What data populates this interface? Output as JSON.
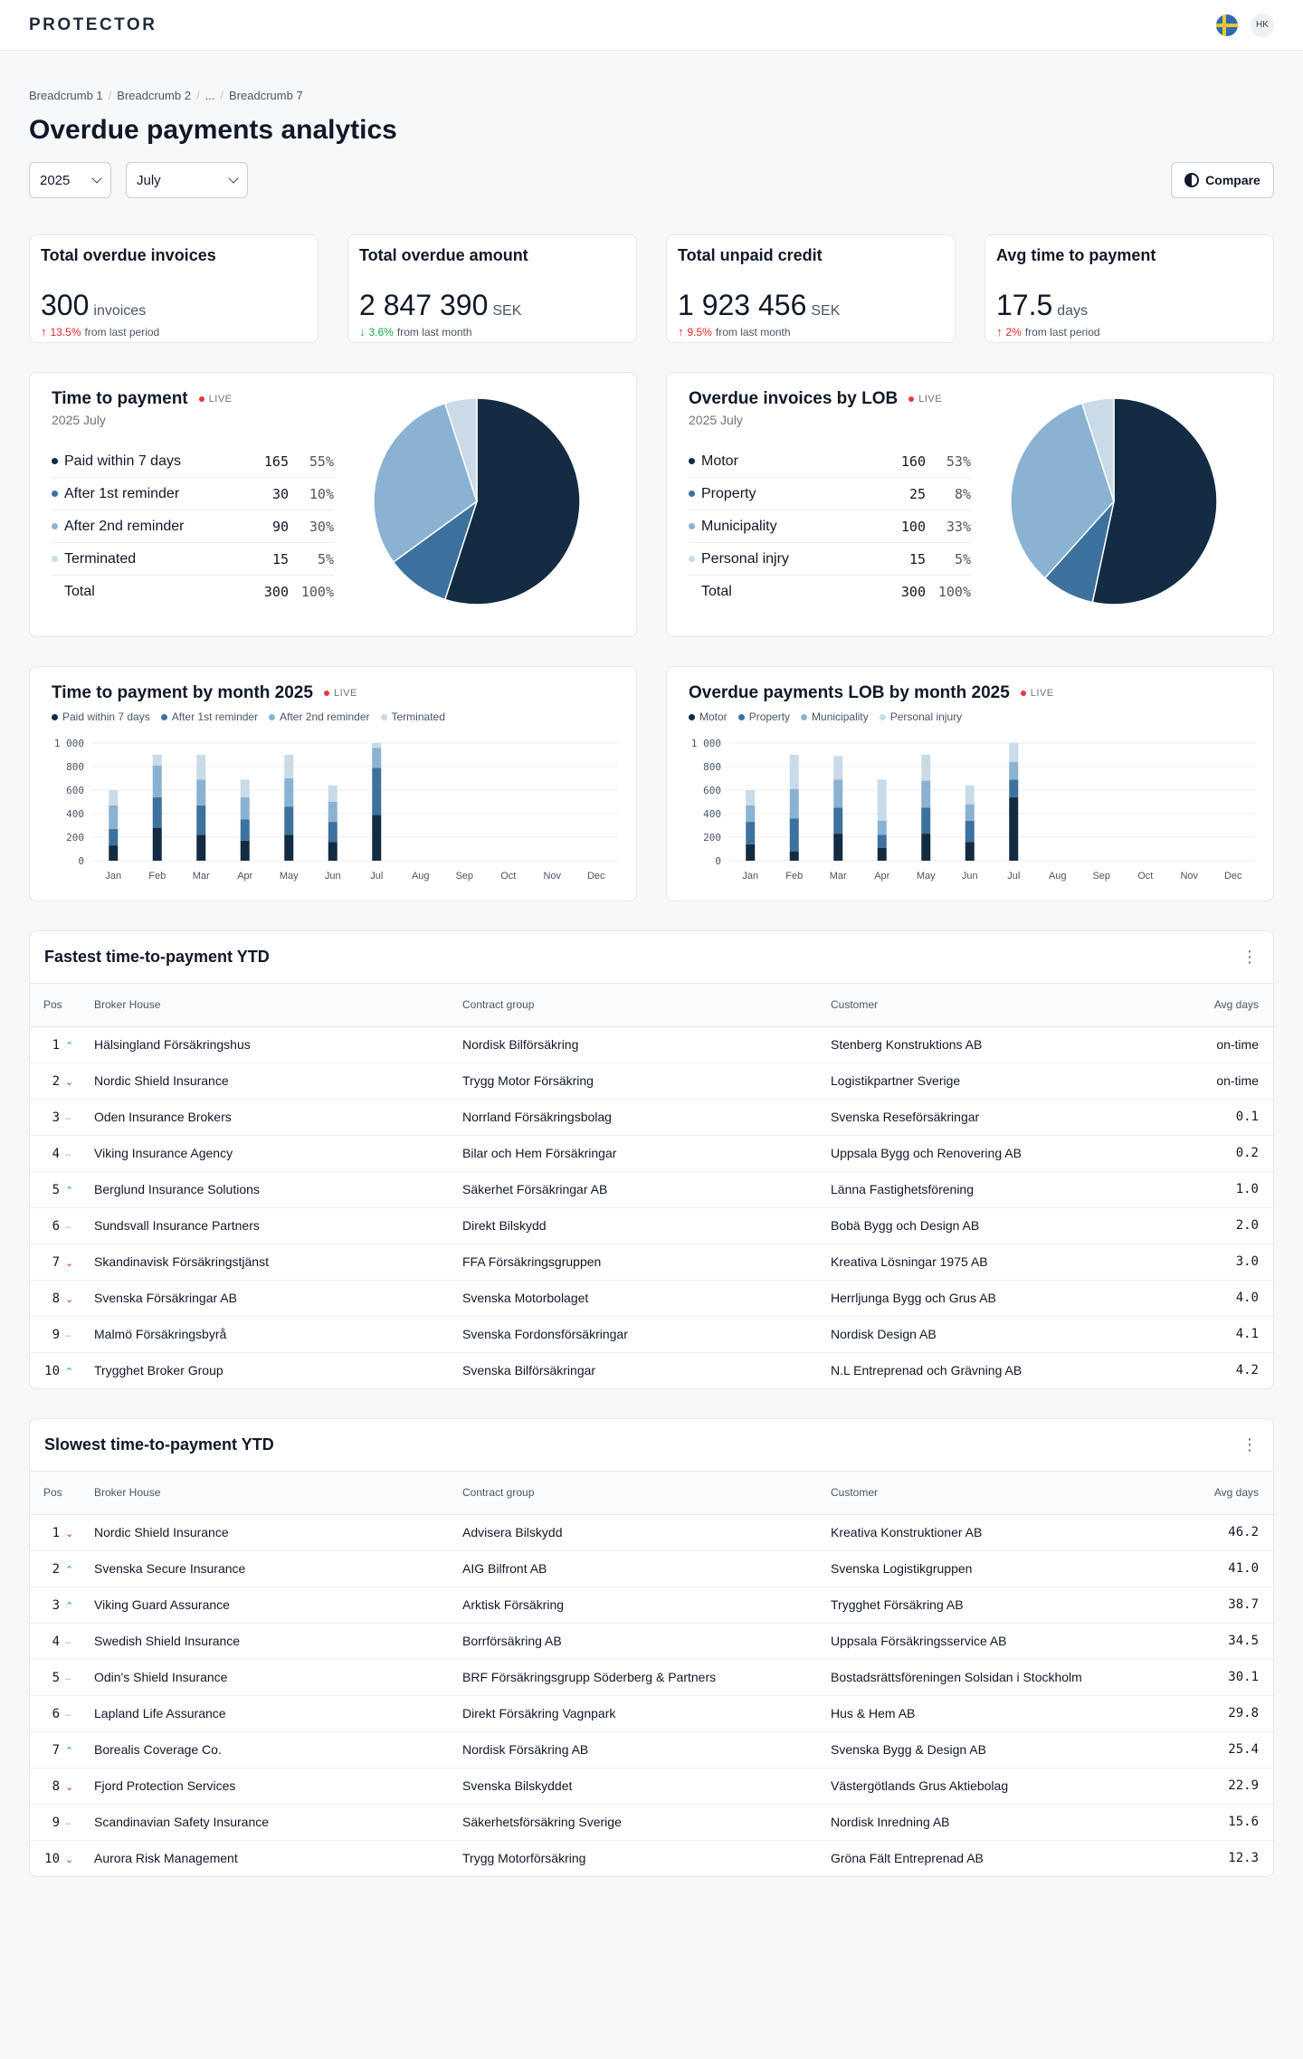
{
  "app": {
    "logo": "PROTECTOR",
    "user_initials": "HK"
  },
  "breadcrumb": [
    "Breadcrumb 1",
    "Breadcrumb 2",
    "...",
    "Breadcrumb 7"
  ],
  "page": {
    "title": "Overdue payments analytics"
  },
  "filters": {
    "year": "2025",
    "month": "July",
    "compare_label": "Compare"
  },
  "kpis": [
    {
      "title": "Total overdue invoices",
      "value": "300",
      "unit": "invoices",
      "delta": "13.5%",
      "direction": "up",
      "note": "from last period"
    },
    {
      "title": "Total overdue amount",
      "value": "2 847 390",
      "unit": "SEK",
      "delta": "3.6%",
      "direction": "down",
      "note": "from last month"
    },
    {
      "title": "Total unpaid credit",
      "value": "1 923 456",
      "unit": "SEK",
      "delta": "9.5%",
      "direction": "up",
      "note": "from last month"
    },
    {
      "title": "Avg time to payment",
      "value": "17.5",
      "unit": "days",
      "delta": "2%",
      "direction": "up",
      "note": "from last period"
    }
  ],
  "live_label": "LIVE",
  "colors": {
    "c1": "#132b43",
    "c2": "#3d719e",
    "c3": "#8ab2d2",
    "c4": "#c9dae8"
  },
  "pie_time": {
    "title": "Time to payment",
    "subtitle": "2025 July",
    "rows": [
      {
        "label": "Paid within 7 days",
        "count": "165",
        "pct": "55%"
      },
      {
        "label": "After 1st reminder",
        "count": "30",
        "pct": "10%"
      },
      {
        "label": "After 2nd reminder",
        "count": "90",
        "pct": "30%"
      },
      {
        "label": "Terminated",
        "count": "15",
        "pct": "5%"
      }
    ],
    "total": {
      "label": "Total",
      "count": "300",
      "pct": "100%"
    }
  },
  "pie_lob": {
    "title": "Overdue invoices by LOB",
    "subtitle": "2025 July",
    "rows": [
      {
        "label": "Motor",
        "count": "160",
        "pct": "53%"
      },
      {
        "label": "Property",
        "count": "25",
        "pct": "8%"
      },
      {
        "label": "Municipality",
        "count": "100",
        "pct": "33%"
      },
      {
        "label": "Personal injry",
        "count": "15",
        "pct": "5%"
      }
    ],
    "total": {
      "label": "Total",
      "count": "300",
      "pct": "100%"
    }
  },
  "bar_time": {
    "title": "Time to payment by month 2025",
    "legend": [
      "Paid within 7 days",
      "After 1st reminder",
      "After 2nd reminder",
      "Terminated"
    ]
  },
  "bar_lob": {
    "title": "Overdue payments LOB by month 2025",
    "legend": [
      "Motor",
      "Property",
      "Municipality",
      "Personal injury"
    ]
  },
  "chart_data": [
    {
      "type": "pie",
      "title": "Time to payment",
      "labels": [
        "Paid within 7 days",
        "After 1st reminder",
        "After 2nd reminder",
        "Terminated"
      ],
      "values": [
        165,
        30,
        90,
        15
      ]
    },
    {
      "type": "pie",
      "title": "Overdue invoices by LOB",
      "labels": [
        "Motor",
        "Property",
        "Municipality",
        "Personal injry"
      ],
      "values": [
        160,
        25,
        100,
        15
      ]
    },
    {
      "type": "bar",
      "stacked": true,
      "title": "Time to payment by month 2025",
      "categories": [
        "Jan",
        "Feb",
        "Mar",
        "Apr",
        "May",
        "Jun",
        "Jul",
        "Aug",
        "Sep",
        "Oct",
        "Nov",
        "Dec"
      ],
      "ylim": [
        0,
        1000
      ],
      "yticks": [
        0,
        200,
        400,
        600,
        800,
        1000
      ],
      "ytick_labels": [
        "0",
        "200",
        "400",
        "600",
        "800",
        "1 000"
      ],
      "series": [
        {
          "name": "Paid within 7 days",
          "values": [
            130,
            280,
            220,
            170,
            220,
            160,
            390,
            0,
            0,
            0,
            0,
            0
          ]
        },
        {
          "name": "After 1st reminder",
          "values": [
            140,
            260,
            250,
            180,
            240,
            170,
            400,
            0,
            0,
            0,
            0,
            0
          ]
        },
        {
          "name": "After 2nd reminder",
          "values": [
            200,
            270,
            220,
            190,
            240,
            170,
            170,
            0,
            0,
            0,
            0,
            0
          ]
        },
        {
          "name": "Terminated",
          "values": [
            130,
            90,
            210,
            150,
            200,
            140,
            40,
            0,
            0,
            0,
            0,
            0
          ]
        }
      ]
    },
    {
      "type": "bar",
      "stacked": true,
      "title": "Overdue payments LOB by month 2025",
      "categories": [
        "Jan",
        "Feb",
        "Mar",
        "Apr",
        "May",
        "Jun",
        "Jul",
        "Aug",
        "Sep",
        "Oct",
        "Nov",
        "Dec"
      ],
      "ylim": [
        0,
        1000
      ],
      "yticks": [
        0,
        200,
        400,
        600,
        800,
        1000
      ],
      "ytick_labels": [
        "0",
        "200",
        "400",
        "600",
        "800",
        "1 000"
      ],
      "series": [
        {
          "name": "Motor",
          "values": [
            140,
            80,
            230,
            110,
            230,
            160,
            540,
            0,
            0,
            0,
            0,
            0
          ]
        },
        {
          "name": "Property",
          "values": [
            190,
            280,
            220,
            110,
            220,
            180,
            150,
            0,
            0,
            0,
            0,
            0
          ]
        },
        {
          "name": "Municipality",
          "values": [
            140,
            250,
            240,
            120,
            230,
            140,
            150,
            0,
            0,
            0,
            0,
            0
          ]
        },
        {
          "name": "Personal injury",
          "values": [
            130,
            290,
            200,
            350,
            220,
            160,
            160,
            0,
            0,
            0,
            0,
            0
          ]
        }
      ]
    }
  ],
  "table_fast": {
    "title": "Fastest time-to-payment YTD",
    "columns": [
      "Pos",
      "Broker House",
      "Contract group",
      "Customer",
      "Avg days"
    ],
    "rows": [
      {
        "pos": "1",
        "trend": "up",
        "broker": "Hälsingland Försäkringshus",
        "contract": "Nordisk Bilförsäkring",
        "customer": "Stenberg Konstruktions AB",
        "avg": "on-time"
      },
      {
        "pos": "2",
        "trend": "down",
        "broker": "Nordic Shield Insurance",
        "contract": "Trygg Motor Försäkring",
        "customer": "Logistikpartner Sverige",
        "avg": "on-time"
      },
      {
        "pos": "3",
        "trend": "flat",
        "broker": "Oden Insurance Brokers",
        "contract": "Norrland Försäkringsbolag",
        "customer": "Svenska Reseförsäkringar",
        "avg": "0.1"
      },
      {
        "pos": "4",
        "trend": "flat",
        "broker": "Viking Insurance Agency",
        "contract": "Bilar och Hem Försäkringar",
        "customer": "Uppsala Bygg och Renovering AB",
        "avg": "0.2"
      },
      {
        "pos": "5",
        "trend": "up",
        "broker": "Berglund Insurance Solutions",
        "contract": "Säkerhet Försäkringar AB",
        "customer": "Länna Fastighetsförening",
        "avg": "1.0"
      },
      {
        "pos": "6",
        "trend": "flat",
        "broker": "Sundsvall Insurance Partners",
        "contract": "Direkt Bilskydd",
        "customer": "Bobä Bygg och Design AB",
        "avg": "2.0"
      },
      {
        "pos": "7",
        "trend": "down",
        "broker": "Skandinavisk Försäkringstjänst",
        "contract": "FFA Försäkringsgruppen",
        "customer": "Kreativa Lösningar 1975 AB",
        "avg": "3.0"
      },
      {
        "pos": "8",
        "trend": "down",
        "broker": "Svenska Försäkringar AB",
        "contract": "Svenska Motorbolaget",
        "customer": "Herrljunga Bygg och Grus AB",
        "avg": "4.0"
      },
      {
        "pos": "9",
        "trend": "flat",
        "broker": "Malmö Försäkringsbyrå",
        "contract": "Svenska Fordonsförsäkringar",
        "customer": "Nordisk Design AB",
        "avg": "4.1"
      },
      {
        "pos": "10",
        "trend": "up",
        "broker": "Trygghet Broker Group",
        "contract": "Svenska Bilförsäkringar",
        "customer": "N.L Entreprenad och Grävning AB",
        "avg": "4.2"
      }
    ]
  },
  "table_slow": {
    "title": "Slowest time-to-payment YTD",
    "columns": [
      "Pos",
      "Broker House",
      "Contract group",
      "Customer",
      "Avg days"
    ],
    "rows": [
      {
        "pos": "1",
        "trend": "down",
        "broker": "Nordic Shield Insurance",
        "contract": "Advisera Bilskydd",
        "customer": "Kreativa Konstruktioner AB",
        "avg": "46.2"
      },
      {
        "pos": "2",
        "trend": "up",
        "broker": "Svenska Secure Insurance",
        "contract": "AIG Bilfront AB",
        "customer": "Svenska Logistikgruppen",
        "avg": "41.0"
      },
      {
        "pos": "3",
        "trend": "up",
        "broker": "Viking Guard Assurance",
        "contract": "Arktisk Försäkring",
        "customer": "Trygghet Försäkring AB",
        "avg": "38.7"
      },
      {
        "pos": "4",
        "trend": "flat",
        "broker": "Swedish Shield Insurance",
        "contract": "Borrförsäkring AB",
        "customer": "Uppsala Försäkringsservice AB",
        "avg": "34.5"
      },
      {
        "pos": "5",
        "trend": "flat",
        "broker": "Odin's Shield Insurance",
        "contract": "BRF Försäkringsgrupp Söderberg & Partners",
        "customer": "Bostadsrättsföreningen Solsidan i Stockholm",
        "avg": "30.1"
      },
      {
        "pos": "6",
        "trend": "flat",
        "broker": "Lapland Life Assurance",
        "contract": "Direkt Försäkring Vagnpark",
        "customer": "Hus & Hem AB",
        "avg": "29.8"
      },
      {
        "pos": "7",
        "trend": "up",
        "broker": "Borealis Coverage Co.",
        "contract": "Nordisk Försäkring AB",
        "customer": "Svenska Bygg & Design AB",
        "avg": "25.4"
      },
      {
        "pos": "8",
        "trend": "down",
        "broker": "Fjord Protection Services",
        "contract": "Svenska Bilskyddet",
        "customer": "Västergötlands Grus Aktiebolag",
        "avg": "22.9"
      },
      {
        "pos": "9",
        "trend": "flat",
        "broker": "Scandinavian Safety Insurance",
        "contract": "Säkerhetsförsäkring Sverige",
        "customer": "Nordisk Inredning AB",
        "avg": "15.6"
      },
      {
        "pos": "10",
        "trend": "down",
        "broker": "Aurora Risk Management",
        "contract": "Trygg Motorförsäkring",
        "customer": "Gröna Fält Entreprenad AB",
        "avg": "12.3"
      }
    ]
  }
}
